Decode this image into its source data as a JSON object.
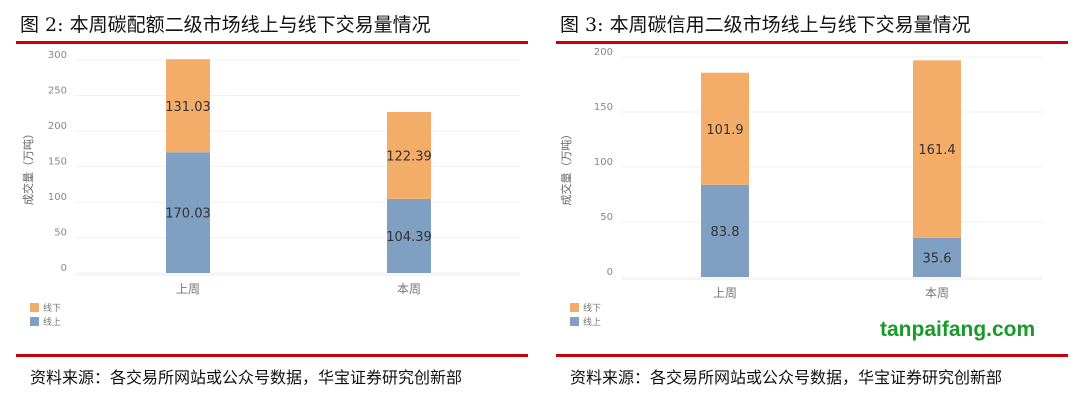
{
  "colors": {
    "offline": "#f4ad68",
    "online": "#7f9fc3",
    "accent": "#c8000a"
  },
  "charts": [
    {
      "title": "图 2:  本周碳配额二级市场线上与线下交易量情况",
      "source": "资料来源：各交易所网站或公众号数据，华宝证券研究创新部"
    },
    {
      "title": "图 3:  本周碳信用二级市场线上与线下交易量情况",
      "source": "资料来源：各交易所网站或公众号数据，华宝证券研究创新部"
    }
  ],
  "watermark": "tanpaifang.com",
  "chart_data": [
    {
      "type": "bar",
      "stacked": true,
      "categories": [
        "上周",
        "本周"
      ],
      "ylabel": "成交量（万吨）",
      "ylim": [
        0,
        300
      ],
      "yticks": [
        0,
        50,
        100,
        150,
        200,
        250,
        300
      ],
      "grid": true,
      "legend": "bottom-left",
      "series": [
        {
          "name": "线上",
          "values": [
            170.03,
            104.39
          ]
        },
        {
          "name": "线下",
          "values": [
            131.03,
            122.39
          ]
        }
      ]
    },
    {
      "type": "bar",
      "stacked": true,
      "categories": [
        "上周",
        "本周"
      ],
      "ylabel": "成交量（万吨）",
      "ylim": [
        0,
        200
      ],
      "yticks": [
        0,
        50,
        100,
        150,
        200
      ],
      "grid": true,
      "legend": "bottom-left",
      "series": [
        {
          "name": "线上",
          "values": [
            83.8,
            35.6
          ]
        },
        {
          "name": "线下",
          "values": [
            101.9,
            161.4
          ]
        }
      ]
    }
  ]
}
